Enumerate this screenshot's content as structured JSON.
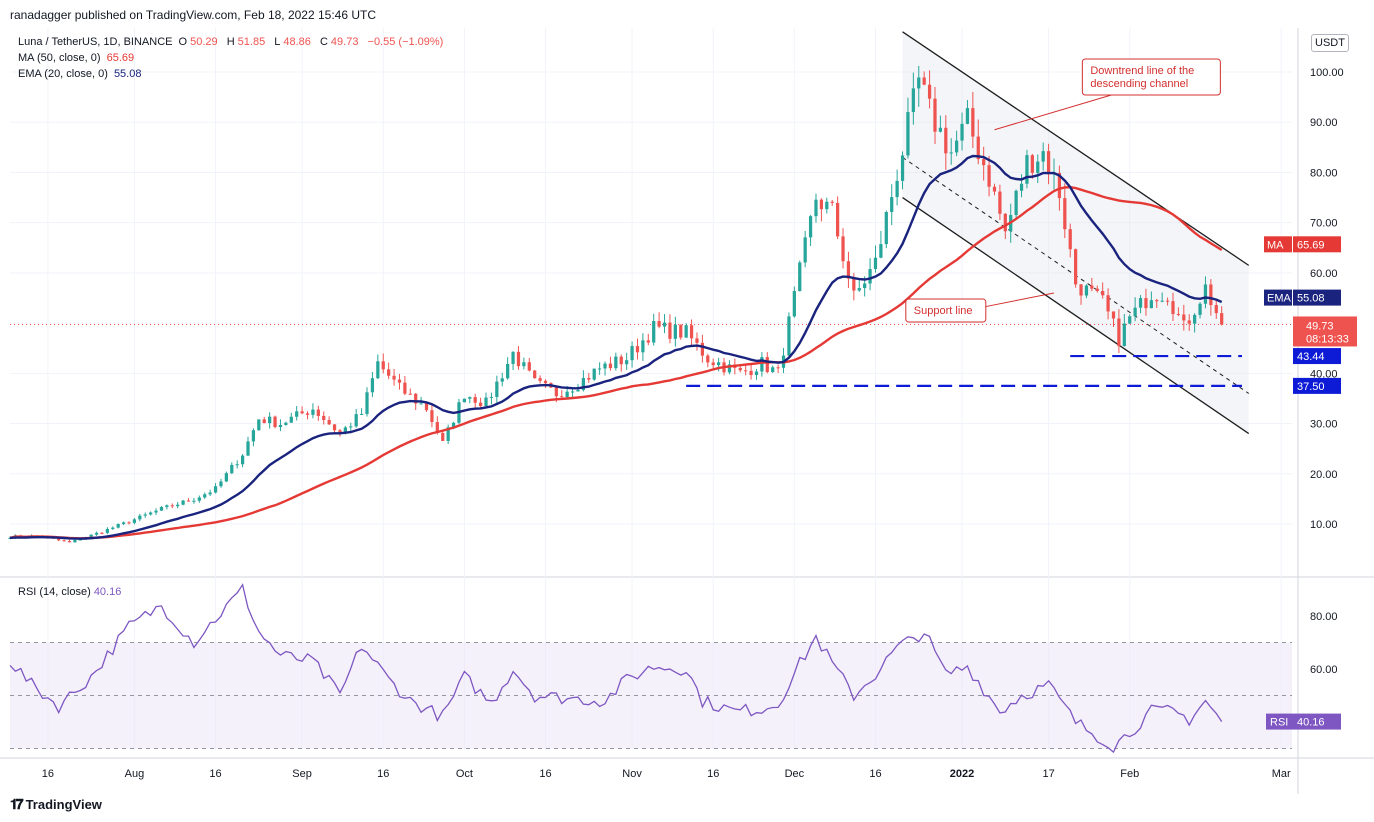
{
  "header": {
    "published": "ranadagger published on TradingView.com, Feb 18, 2022 15:46 UTC"
  },
  "legend": {
    "symbol": "Luna / TetherUS, 1D, BINANCE",
    "o_label": "O",
    "o": "50.29",
    "h_label": "H",
    "h": "51.85",
    "l_label": "L",
    "l": "48.86",
    "c_label": "C",
    "c": "49.73",
    "change": "−0.55 (−1.09%)",
    "ma_label": "MA (50, close, 0)",
    "ma_value": "65.69",
    "ema_label": "EMA (20, close, 0)",
    "ema_value": "55.08",
    "rsi_label": "RSI (14, close)",
    "rsi_value": "40.16"
  },
  "currency_button": "USDT",
  "footer": {
    "brand": "TradingView"
  },
  "colors": {
    "up": "#26a69a",
    "down": "#ef5350",
    "ma": "#e53935",
    "ema": "#1a237e",
    "dashed": "#0d1bd6",
    "rsi": "#7e57c2",
    "annotation": "#d32f2f",
    "channel": "#1e1e1e"
  },
  "chart_data": {
    "type": "candlestick",
    "title": "Luna / TetherUS, 1D, BINANCE",
    "ylim": [
      0,
      105
    ],
    "y_ticks": [
      "100.00",
      "90.00",
      "80.00",
      "70.00",
      "60.00",
      "50.00",
      "40.00",
      "30.00",
      "20.00",
      "10.00"
    ],
    "x_ticks": [
      "16",
      "Aug",
      "16",
      "Sep",
      "16",
      "Oct",
      "16",
      "Nov",
      "16",
      "Dec",
      "16",
      "2022",
      "17",
      "Feb",
      "Mar"
    ],
    "x_range": [
      "2021-07-09",
      "2022-03-03"
    ],
    "close_anchors": [
      [
        "2021-07-09",
        7.5
      ],
      [
        "2021-07-14",
        7.6
      ],
      [
        "2021-07-20",
        6.3
      ],
      [
        "2021-07-26",
        8.5
      ],
      [
        "2021-07-31",
        10.5
      ],
      [
        "2021-08-06",
        13
      ],
      [
        "2021-08-12",
        15
      ],
      [
        "2021-08-16",
        17
      ],
      [
        "2021-08-21",
        24
      ],
      [
        "2021-08-24",
        31
      ],
      [
        "2021-08-28",
        30
      ],
      [
        "2021-09-03",
        33
      ],
      [
        "2021-09-08",
        28
      ],
      [
        "2021-09-12",
        32
      ],
      [
        "2021-09-15",
        42
      ],
      [
        "2021-09-19",
        37
      ],
      [
        "2021-09-24",
        33
      ],
      [
        "2021-09-27",
        26
      ],
      [
        "2021-10-01",
        36
      ],
      [
        "2021-10-05",
        34
      ],
      [
        "2021-10-10",
        44
      ],
      [
        "2021-10-14",
        38
      ],
      [
        "2021-10-18",
        36
      ],
      [
        "2021-10-22",
        38
      ],
      [
        "2021-10-26",
        41
      ],
      [
        "2021-10-31",
        43
      ],
      [
        "2021-11-05",
        49
      ],
      [
        "2021-11-11",
        48
      ],
      [
        "2021-11-15",
        43
      ],
      [
        "2021-11-21",
        40
      ],
      [
        "2021-11-25",
        42
      ],
      [
        "2021-11-28",
        40
      ],
      [
        "2021-12-02",
        60
      ],
      [
        "2021-12-05",
        75
      ],
      [
        "2021-12-08",
        72
      ],
      [
        "2021-12-12",
        55
      ],
      [
        "2021-12-16",
        62
      ],
      [
        "2021-12-20",
        80
      ],
      [
        "2021-12-24",
        98
      ],
      [
        "2021-12-26",
        92
      ],
      [
        "2021-12-30",
        84
      ],
      [
        "2022-01-02",
        90
      ],
      [
        "2022-01-06",
        79
      ],
      [
        "2022-01-09",
        68
      ],
      [
        "2022-01-13",
        82
      ],
      [
        "2022-01-16",
        84
      ],
      [
        "2022-01-19",
        76
      ],
      [
        "2022-01-22",
        58
      ],
      [
        "2022-01-27",
        54
      ],
      [
        "2022-01-30",
        47
      ],
      [
        "2022-02-01",
        51
      ],
      [
        "2022-02-05",
        56
      ],
      [
        "2022-02-08",
        56
      ],
      [
        "2022-02-11",
        49
      ],
      [
        "2022-02-15",
        57
      ],
      [
        "2022-02-18",
        49.73
      ]
    ],
    "ma_last": 65.69,
    "ema_last": 55.08,
    "last_price": 49.73,
    "countdown": "08:13:33",
    "horizontal_levels": [
      {
        "value": 43.44,
        "label": "43.44",
        "from": "2022-01-21"
      },
      {
        "value": 37.5,
        "label": "37.50",
        "from": "2021-11-11"
      }
    ],
    "channel_lines": [
      {
        "role": "upper",
        "from": [
          "2021-12-21",
          108
        ],
        "to": [
          "2022-02-23",
          61.5
        ]
      },
      {
        "role": "middle",
        "from": [
          "2021-12-21",
          83
        ],
        "to": [
          "2022-02-23",
          36
        ]
      },
      {
        "role": "lower",
        "from": [
          "2021-12-21",
          75
        ],
        "to": [
          "2022-02-23",
          28
        ]
      }
    ],
    "annotations": [
      {
        "text": "Downtrend line of the\ndescending channel",
        "anchor": [
          "2022-02-05",
          99
        ]
      },
      {
        "text": "Support line",
        "anchor": [
          "2021-12-29",
          52.5
        ]
      }
    ],
    "rsi": {
      "ylim": [
        27,
        94
      ],
      "y_ticks": [
        "80.00",
        "60.00"
      ],
      "bands": [
        30,
        50,
        70
      ],
      "anchors": [
        [
          "2021-07-09",
          63
        ],
        [
          "2021-07-13",
          54
        ],
        [
          "2021-07-18",
          46
        ],
        [
          "2021-07-24",
          57
        ],
        [
          "2021-07-31",
          76
        ],
        [
          "2021-08-06",
          84
        ],
        [
          "2021-08-12",
          70
        ],
        [
          "2021-08-16",
          79
        ],
        [
          "2021-08-21",
          90
        ],
        [
          "2021-08-24",
          74
        ],
        [
          "2021-08-28",
          65
        ],
        [
          "2021-09-03",
          63
        ],
        [
          "2021-09-08",
          50
        ],
        [
          "2021-09-12",
          69
        ],
        [
          "2021-09-17",
          56
        ],
        [
          "2021-09-21",
          48
        ],
        [
          "2021-09-27",
          42
        ],
        [
          "2021-10-01",
          57
        ],
        [
          "2021-10-06",
          47
        ],
        [
          "2021-10-10",
          60
        ],
        [
          "2021-10-14",
          50
        ],
        [
          "2021-10-20",
          49
        ],
        [
          "2021-10-27",
          48
        ],
        [
          "2021-10-31",
          56
        ],
        [
          "2021-11-05",
          61
        ],
        [
          "2021-11-11",
          60
        ],
        [
          "2021-11-14",
          48
        ],
        [
          "2021-11-20",
          44
        ],
        [
          "2021-11-25",
          45
        ],
        [
          "2021-11-28",
          47
        ],
        [
          "2021-12-02",
          62
        ],
        [
          "2021-12-05",
          72
        ],
        [
          "2021-12-08",
          62
        ],
        [
          "2021-12-12",
          50
        ],
        [
          "2021-12-16",
          58
        ],
        [
          "2021-12-20",
          68
        ],
        [
          "2021-12-25",
          74
        ],
        [
          "2021-12-29",
          58
        ],
        [
          "2022-01-02",
          61
        ],
        [
          "2022-01-08",
          44
        ],
        [
          "2022-01-12",
          50
        ],
        [
          "2022-01-17",
          54
        ],
        [
          "2022-01-22",
          40
        ],
        [
          "2022-01-29",
          31
        ],
        [
          "2022-02-01",
          36
        ],
        [
          "2022-02-05",
          44
        ],
        [
          "2022-02-09",
          44
        ],
        [
          "2022-02-12",
          41
        ],
        [
          "2022-02-15",
          48
        ],
        [
          "2022-02-18",
          40.16
        ]
      ]
    }
  }
}
